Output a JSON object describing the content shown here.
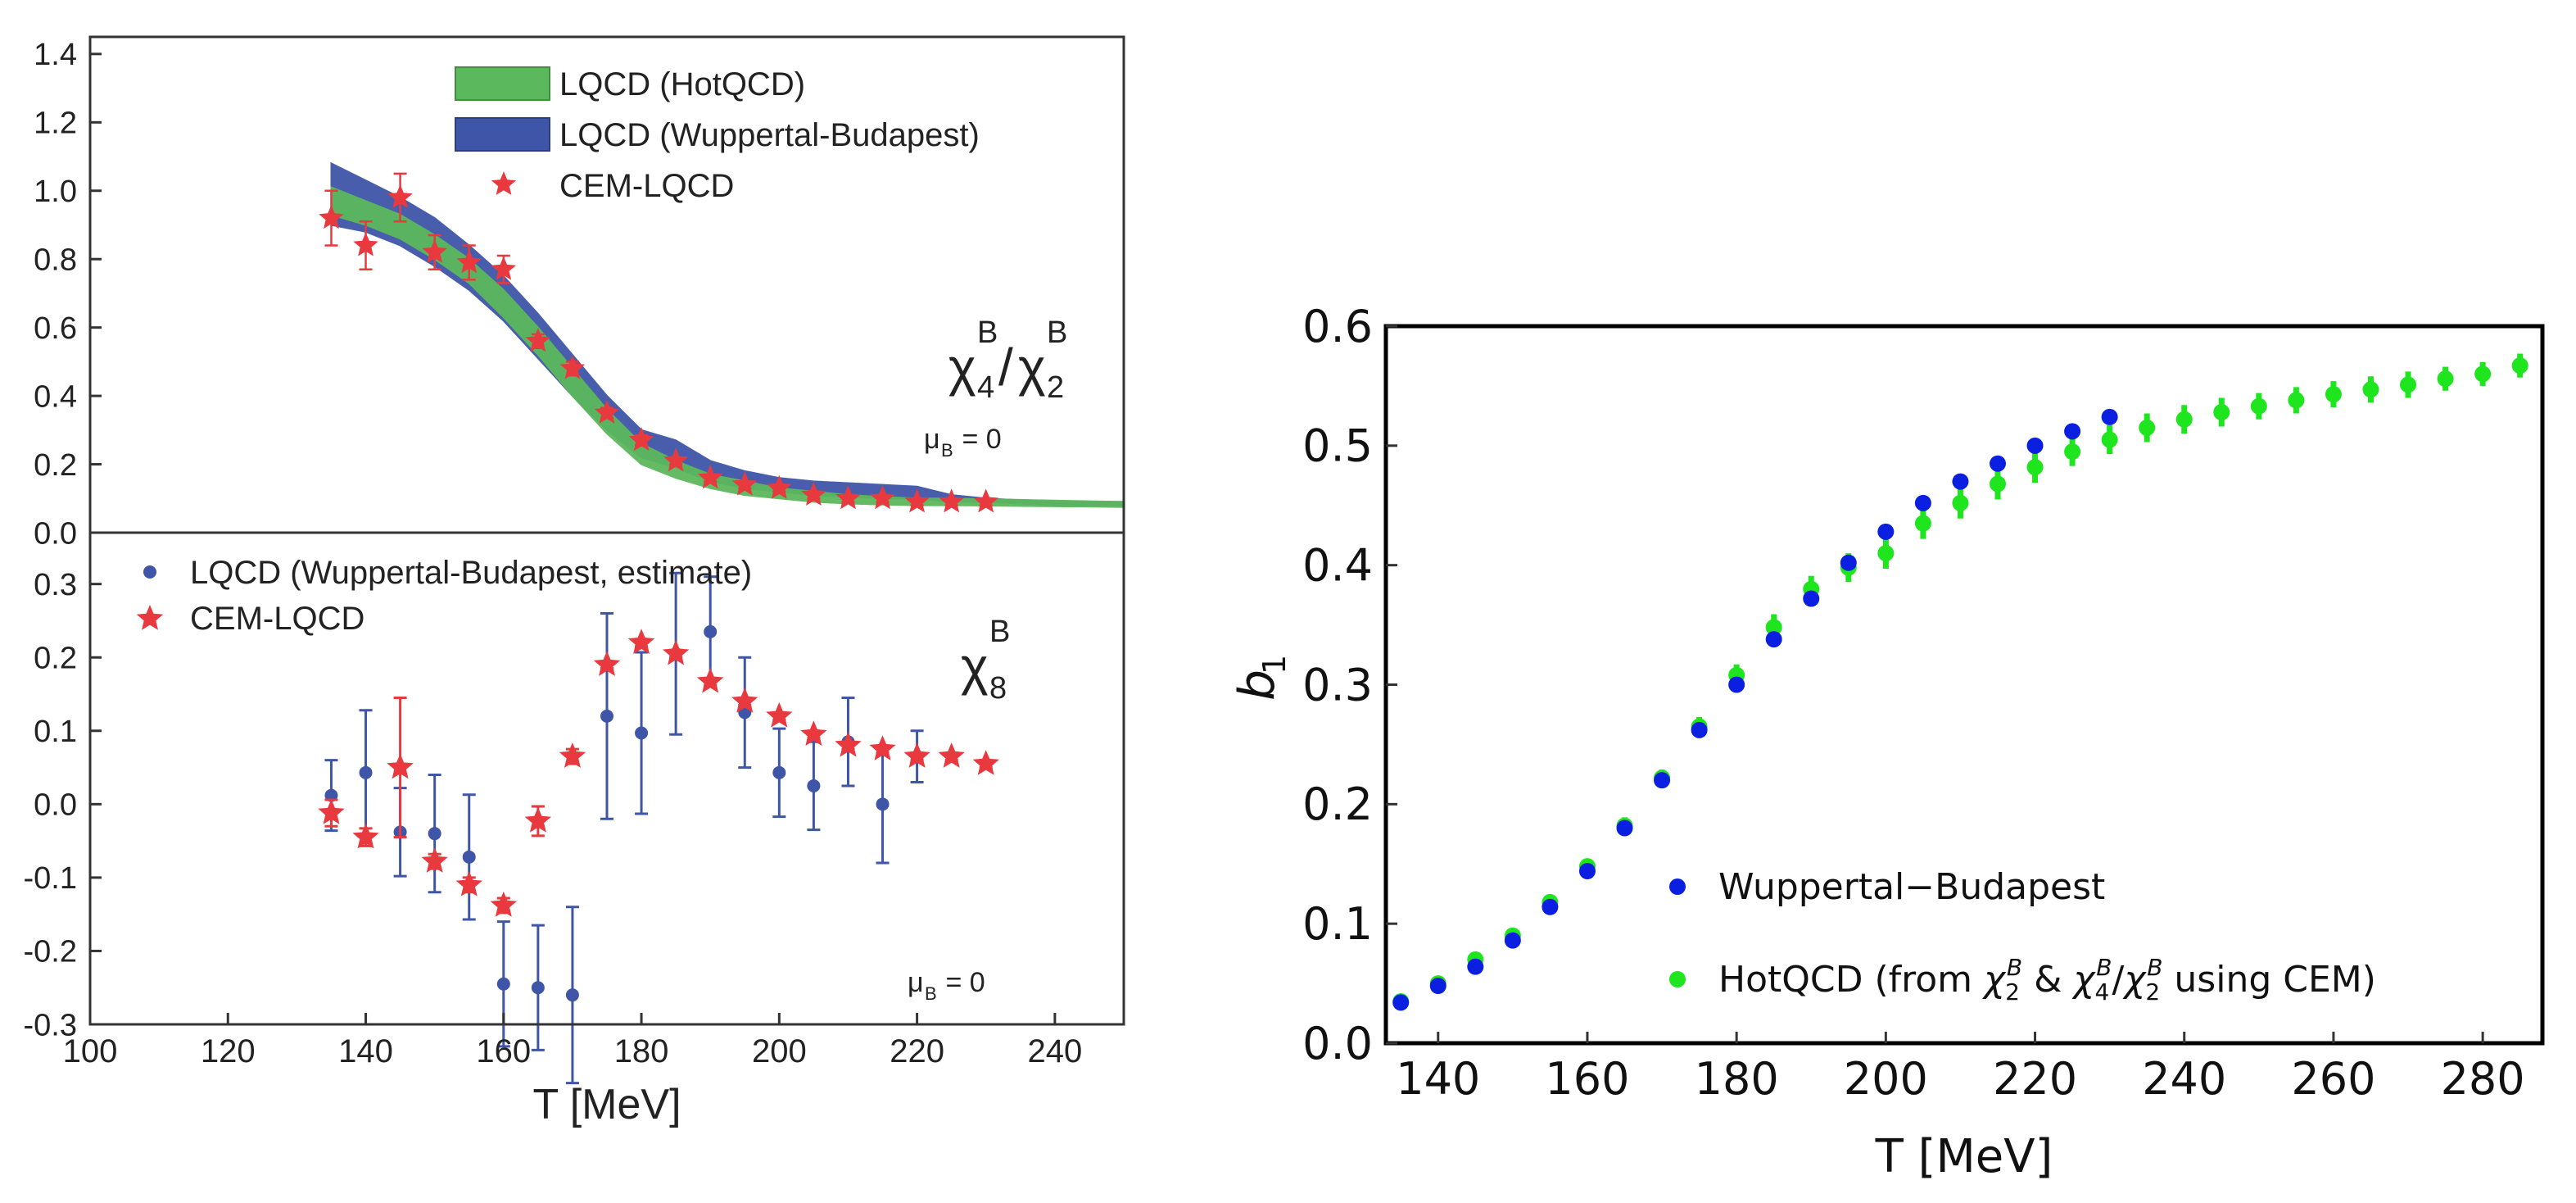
{
  "chart_data": [
    {
      "id": "chi4-over-chi2",
      "type": "scatter",
      "title": "",
      "annotation_main": "χ",
      "annotation_sub1": "4",
      "annotation_sup1": "B",
      "annotation_slash": "/",
      "annotation_chi2": "χ",
      "annotation_sub2": "2",
      "annotation_sup2": "B",
      "mu_label": "μ",
      "mu_sub": "B",
      "mu_value": " = 0",
      "xlabel": "",
      "ylabel": "",
      "xlim": [
        100,
        250
      ],
      "ylim": [
        0.0,
        1.45
      ],
      "yticks": [
        "0.0",
        "0.2",
        "0.4",
        "0.6",
        "0.8",
        "1.0",
        "1.2",
        "1.4"
      ],
      "ytick_values": [
        0.0,
        0.2,
        0.4,
        0.6,
        0.8,
        1.0,
        1.2,
        1.4
      ],
      "legend": [
        {
          "label": "LQCD (HotQCD)",
          "color": "#5cb85c"
        },
        {
          "label": "LQCD (Wuppertal-Budapest)",
          "color": "#3f56a8"
        },
        {
          "label": "CEM-LQCD",
          "color": "#e8393f"
        }
      ],
      "bands": [
        {
          "name": "LQCD (Wuppertal-Budapest)",
          "color": "#3f56a8",
          "x": [
            135,
            140,
            145,
            150,
            155,
            160,
            165,
            170,
            175,
            180,
            185,
            190,
            195,
            200,
            205,
            210,
            215,
            220,
            225,
            230,
            235,
            240,
            245,
            250
          ],
          "upper": [
            1.08,
            1.03,
            0.98,
            0.92,
            0.84,
            0.75,
            0.64,
            0.52,
            0.4,
            0.3,
            0.27,
            0.21,
            0.18,
            0.16,
            0.15,
            0.145,
            0.14,
            0.135,
            0.11,
            0.1,
            0.095,
            0.09,
            0.09,
            0.09
          ],
          "lower": [
            0.9,
            0.88,
            0.84,
            0.78,
            0.71,
            0.62,
            0.51,
            0.4,
            0.3,
            0.22,
            0.19,
            0.15,
            0.13,
            0.12,
            0.11,
            0.105,
            0.1,
            0.1,
            0.09,
            0.09,
            0.085,
            0.08,
            0.08,
            0.08
          ]
        },
        {
          "name": "LQCD (HotQCD)",
          "color": "#5cb85c",
          "x": [
            135,
            140,
            145,
            150,
            155,
            160,
            165,
            170,
            175,
            180,
            185,
            190,
            195,
            200,
            205,
            210,
            215,
            220,
            225,
            230,
            235,
            240,
            245,
            250
          ],
          "upper": [
            1.01,
            0.97,
            0.93,
            0.87,
            0.8,
            0.71,
            0.6,
            0.48,
            0.36,
            0.26,
            0.21,
            0.17,
            0.15,
            0.13,
            0.12,
            0.11,
            0.105,
            0.1,
            0.1,
            0.098,
            0.096,
            0.094,
            0.092,
            0.09
          ],
          "lower": [
            0.93,
            0.9,
            0.86,
            0.8,
            0.73,
            0.63,
            0.52,
            0.4,
            0.29,
            0.2,
            0.16,
            0.13,
            0.11,
            0.1,
            0.09,
            0.085,
            0.082,
            0.08,
            0.08,
            0.079,
            0.078,
            0.077,
            0.076,
            0.075
          ]
        }
      ],
      "series": [
        {
          "name": "CEM-LQCD",
          "marker": "star",
          "color": "#e8393f",
          "x": [
            135,
            140,
            145,
            150,
            155,
            160,
            165,
            170,
            175,
            180,
            185,
            190,
            195,
            200,
            205,
            210,
            215,
            220,
            225,
            230
          ],
          "y": [
            0.92,
            0.84,
            0.98,
            0.82,
            0.79,
            0.77,
            0.56,
            0.48,
            0.35,
            0.27,
            0.21,
            0.16,
            0.14,
            0.13,
            0.11,
            0.1,
            0.1,
            0.09,
            0.09,
            0.09
          ],
          "err": [
            0.08,
            0.07,
            0.07,
            0.05,
            0.05,
            0.04,
            0.02,
            0.02,
            0.015,
            0.015,
            0.01,
            0.01,
            0.01,
            0.01,
            0.01,
            0.01,
            0.01,
            0.01,
            0.01,
            0.01
          ]
        }
      ]
    },
    {
      "id": "chi8",
      "type": "scatter",
      "annotation_main": "χ",
      "annotation_sub1": "8",
      "annotation_sup1": "B",
      "mu_label": "μ",
      "mu_sub": "B",
      "mu_value": " = 0",
      "xlabel": "T [MeV]",
      "ylabel": "",
      "xlim": [
        100,
        250
      ],
      "ylim": [
        -0.3,
        0.37
      ],
      "xticks": [
        "100",
        "120",
        "140",
        "160",
        "180",
        "200",
        "220",
        "240"
      ],
      "xtick_values": [
        100,
        120,
        140,
        160,
        180,
        200,
        220,
        240
      ],
      "yticks": [
        "-0.3",
        "-0.2",
        "-0.1",
        "0.0",
        "0.1",
        "0.2",
        "0.3"
      ],
      "ytick_values": [
        -0.3,
        -0.2,
        -0.1,
        0.0,
        0.1,
        0.2,
        0.3
      ],
      "legend": [
        {
          "label": "LQCD (Wuppertal-Budapest, estimate)",
          "color": "#3f56a8"
        },
        {
          "label": "CEM-LQCD",
          "color": "#e8393f"
        }
      ],
      "series": [
        {
          "name": "LQCD (Wuppertal-Budapest, estimate)",
          "marker": "circle",
          "color": "#3f56a8",
          "x": [
            135,
            140,
            145,
            150,
            155,
            160,
            165,
            170,
            175,
            180,
            185,
            190,
            195,
            200,
            205,
            210,
            215,
            220
          ],
          "y": [
            0.012,
            0.043,
            -0.038,
            -0.04,
            -0.072,
            -0.245,
            -0.25,
            -0.26,
            0.12,
            0.097,
            0.205,
            0.235,
            0.125,
            0.043,
            0.025,
            0.085,
            0.0,
            0.065
          ],
          "err": [
            0.048,
            0.085,
            0.06,
            0.08,
            0.085,
            0.085,
            0.085,
            0.12,
            0.14,
            0.11,
            0.11,
            0.075,
            0.075,
            0.06,
            0.06,
            0.06,
            0.08,
            0.035
          ]
        },
        {
          "name": "CEM-LQCD",
          "marker": "star",
          "color": "#e8393f",
          "x": [
            135,
            140,
            145,
            150,
            155,
            160,
            165,
            170,
            175,
            180,
            185,
            190,
            195,
            200,
            205,
            210,
            215,
            220,
            225,
            230
          ],
          "y": [
            -0.012,
            -0.045,
            0.05,
            -0.078,
            -0.11,
            -0.138,
            -0.023,
            0.065,
            0.19,
            0.22,
            0.205,
            0.167,
            0.14,
            0.12,
            0.095,
            0.08,
            0.075,
            0.065,
            0.065,
            0.055
          ],
          "err": [
            0.018,
            0.012,
            0.095,
            0.01,
            0.01,
            0.01,
            0.02,
            0.01,
            0.005,
            0.005,
            0.005,
            0.005,
            0.005,
            0.005,
            0.005,
            0.005,
            0.005,
            0.005,
            0.005,
            0.005
          ]
        }
      ]
    },
    {
      "id": "b1",
      "type": "scatter",
      "xlabel": "T [MeV]",
      "ylabel": "b",
      "ylabel_sub": "1",
      "xlim": [
        133,
        288
      ],
      "ylim": [
        0.0,
        0.6
      ],
      "xticks": [
        "140",
        "160",
        "180",
        "200",
        "220",
        "240",
        "260",
        "280"
      ],
      "xtick_values": [
        140,
        160,
        180,
        200,
        220,
        240,
        260,
        280
      ],
      "yticks": [
        "0.0",
        "0.1",
        "0.2",
        "0.3",
        "0.4",
        "0.5",
        "0.6"
      ],
      "ytick_values": [
        0.0,
        0.1,
        0.2,
        0.3,
        0.4,
        0.5,
        0.6
      ],
      "legend": [
        {
          "label": "Wuppertal−Budapest",
          "color": "#0a1fe0"
        },
        {
          "label_parts": [
            "HotQCD (from ",
            "χ",
            "2",
            "B",
            " & ",
            "χ",
            "4",
            "B",
            "/",
            "χ",
            "2",
            "B",
            " using CEM)"
          ],
          "color": "#1ee51e"
        }
      ],
      "series": [
        {
          "name": "HotQCD (from χ2B & χ4B/χ2B using CEM)",
          "marker": "circle",
          "color": "#1ee51e",
          "x": [
            135,
            140,
            145,
            150,
            155,
            160,
            165,
            170,
            175,
            180,
            185,
            190,
            195,
            200,
            205,
            210,
            215,
            220,
            225,
            230,
            235,
            240,
            245,
            250,
            255,
            260,
            265,
            270,
            275,
            280,
            285
          ],
          "y": [
            0.035,
            0.05,
            0.07,
            0.09,
            0.118,
            0.148,
            0.182,
            0.222,
            0.265,
            0.308,
            0.348,
            0.38,
            0.398,
            0.41,
            0.435,
            0.452,
            0.468,
            0.482,
            0.495,
            0.505,
            0.515,
            0.522,
            0.528,
            0.533,
            0.538,
            0.543,
            0.547,
            0.551,
            0.556,
            0.56,
            0.567
          ],
          "err": [
            0.004,
            0.004,
            0.005,
            0.005,
            0.006,
            0.006,
            0.007,
            0.007,
            0.008,
            0.009,
            0.011,
            0.011,
            0.012,
            0.013,
            0.013,
            0.013,
            0.013,
            0.013,
            0.012,
            0.012,
            0.012,
            0.012,
            0.012,
            0.011,
            0.011,
            0.011,
            0.011,
            0.011,
            0.01,
            0.01,
            0.01
          ]
        },
        {
          "name": "Wuppertal−Budapest",
          "marker": "circle",
          "color": "#0a1fe0",
          "x": [
            135,
            140,
            145,
            150,
            155,
            160,
            165,
            170,
            175,
            180,
            185,
            190,
            195,
            200,
            205,
            210,
            215,
            220,
            225,
            230
          ],
          "y": [
            0.034,
            0.048,
            0.064,
            0.086,
            0.114,
            0.144,
            0.18,
            0.22,
            0.262,
            0.3,
            0.338,
            0.372,
            0.402,
            0.428,
            0.452,
            0.47,
            0.485,
            0.5,
            0.512,
            0.524
          ],
          "err": [
            0,
            0,
            0,
            0,
            0,
            0,
            0,
            0,
            0,
            0,
            0,
            0,
            0,
            0,
            0,
            0,
            0,
            0,
            0,
            0
          ]
        }
      ]
    }
  ]
}
